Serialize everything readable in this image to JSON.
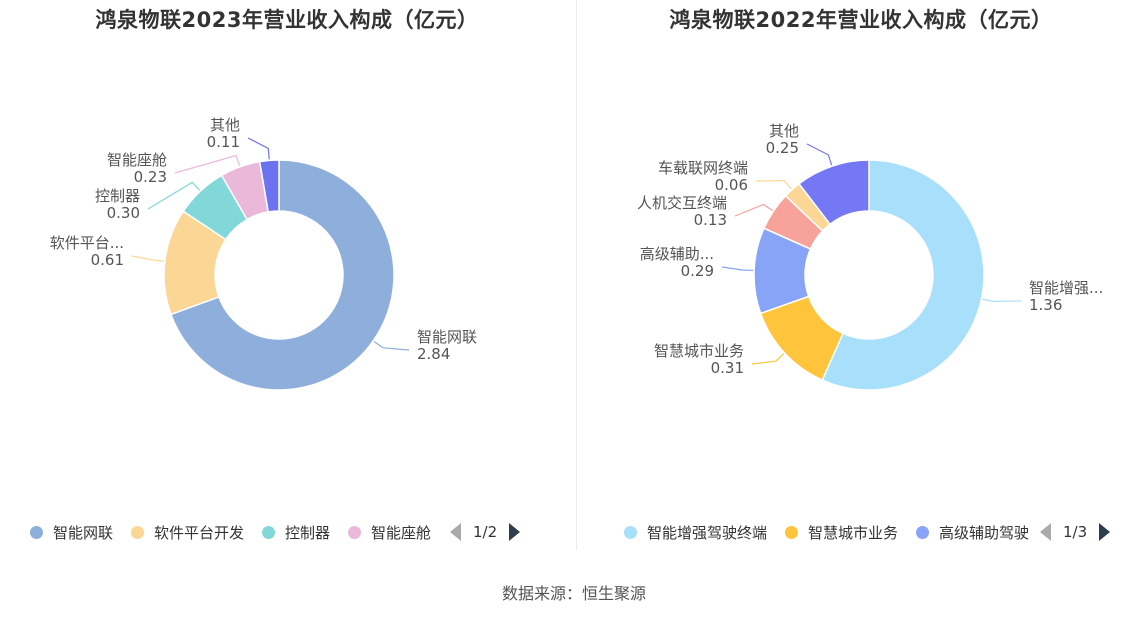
{
  "source": "数据来源：恒生聚源",
  "chart_data": [
    {
      "type": "pie",
      "title": "鸿泉物联2023年营业收入构成（亿元）",
      "slices": [
        {
          "name": "智能网联",
          "label": "智能网联",
          "value": 2.84,
          "display": "2.84",
          "color": "#8eaedb"
        },
        {
          "name": "软件平台开发",
          "label": "软件平台...",
          "value": 0.61,
          "display": "0.61",
          "color": "#fcd694"
        },
        {
          "name": "控制器",
          "label": "控制器",
          "value": 0.3,
          "display": "0.30",
          "color": "#82d8d9"
        },
        {
          "name": "智能座舱",
          "label": "智能座舱",
          "value": 0.23,
          "display": "0.23",
          "color": "#eab9d9"
        },
        {
          "name": "其他",
          "label": "其他",
          "value": 0.11,
          "display": "0.11",
          "color": "#6b73f0"
        }
      ],
      "legend": {
        "items": [
          {
            "name": "智能网联",
            "color": "#8eaedb"
          },
          {
            "name": "软件平台开发",
            "color": "#fcd694"
          },
          {
            "name": "控制器",
            "color": "#82d8d9"
          },
          {
            "name": "智能座舱",
            "color": "#eab9d9"
          }
        ],
        "page": "1/2"
      }
    },
    {
      "type": "pie",
      "title": "鸿泉物联2022年营业收入构成（亿元）",
      "slices": [
        {
          "name": "智能增强驾驶终端",
          "label": "智能增强...",
          "value": 1.36,
          "display": "1.36",
          "color": "#a8dffa"
        },
        {
          "name": "智慧城市业务",
          "label": "智慧城市业务",
          "value": 0.31,
          "display": "0.31",
          "color": "#fdc43c"
        },
        {
          "name": "高级辅助驾驶",
          "label": "高级辅助...",
          "value": 0.29,
          "display": "0.29",
          "color": "#88a4f6"
        },
        {
          "name": "人机交互终端",
          "label": "人机交互终端",
          "value": 0.13,
          "display": "0.13",
          "color": "#f7a29a"
        },
        {
          "name": "车载联网终端",
          "label": "车载联网终端",
          "value": 0.06,
          "display": "0.06",
          "color": "#fcd694"
        },
        {
          "name": "其他",
          "label": "其他",
          "value": 0.25,
          "display": "0.25",
          "color": "#7478f5"
        }
      ],
      "legend": {
        "items": [
          {
            "name": "智能增强驾驶终端",
            "color": "#a8dffa"
          },
          {
            "name": "智慧城市业务",
            "color": "#fdc43c"
          },
          {
            "name": "高级辅助驾驶",
            "color": "#88a4f6"
          }
        ],
        "page": "1/3"
      }
    }
  ]
}
